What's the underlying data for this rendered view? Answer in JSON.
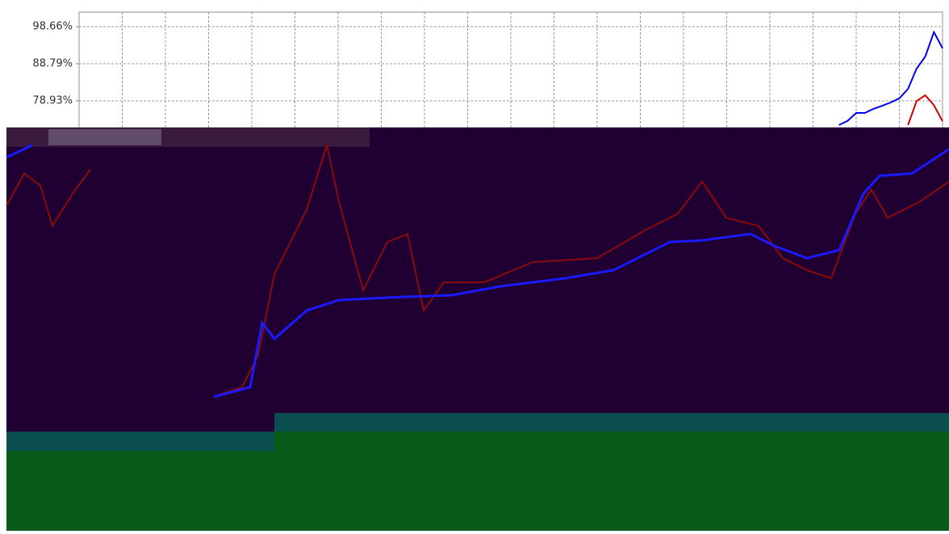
{
  "chart_data": {
    "type": "line",
    "x": [
      88,
      89,
      90,
      91,
      92,
      93,
      94,
      95,
      96,
      97,
      98,
      99,
      100
    ],
    "series": [
      {
        "name": "blue",
        "color": "#0000ee",
        "values": [
          72.5,
          73.6,
          75.7,
          75.7,
          76.8,
          77.6,
          78.5,
          79.6,
          82.1,
          87.5,
          90.7,
          97.2,
          92.9
        ]
      },
      {
        "name": "red",
        "color": "#cc0000",
        "values": [
          null,
          null,
          null,
          null,
          null,
          null,
          null,
          null,
          72.5,
          78.9,
          80.4,
          77.8,
          73.5
        ]
      }
    ],
    "xlim": [
      0,
      100
    ],
    "xticks": [
      0,
      5,
      10,
      15,
      20,
      25,
      30,
      35,
      40,
      45,
      50,
      55,
      60,
      65,
      70,
      75,
      80,
      85,
      90,
      95,
      100
    ],
    "ylim": [
      59.2,
      102.52
    ],
    "yticks": [
      {
        "value": 78.93,
        "label": "78.93%"
      },
      {
        "value": 88.79,
        "label": "88.79%"
      },
      {
        "value": 98.66,
        "label": "98.66%"
      }
    ],
    "grid": true
  }
}
